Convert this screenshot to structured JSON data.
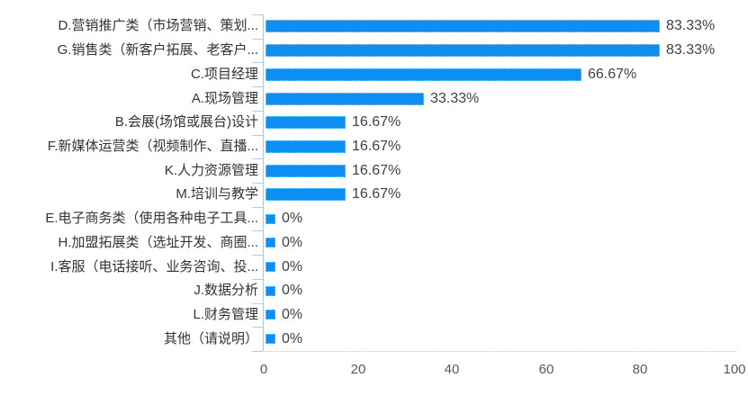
{
  "chart_data": {
    "type": "bar",
    "orientation": "horizontal",
    "title": "",
    "xlabel": "",
    "ylabel": "",
    "legend": "none",
    "grid": false,
    "xlim": [
      0,
      100
    ],
    "x_ticks": [
      "0",
      "20",
      "40",
      "60",
      "80",
      "100"
    ],
    "x_tick_values": [
      0,
      20,
      40,
      60,
      80,
      100
    ],
    "categories": [
      "D.营销推广类（市场营销、策划...",
      "G.销售类（新客户拓展、老客户...",
      "C.项目经理",
      "A.现场管理",
      "B.会展(场馆或展台)设计",
      "F.新媒体运营类（视频制作、直播...",
      "K.人力资源管理",
      "M.培训与教学",
      "E.电子商务类（使用各种电子工具...",
      "H.加盟拓展类（选址开发、商圈...",
      "I.客服（电话接听、业务咨询、投...",
      "J.数据分析",
      "L.财务管理",
      "其他（请说明）"
    ],
    "values": [
      83.33,
      83.33,
      66.67,
      33.33,
      16.67,
      16.67,
      16.67,
      16.67,
      0,
      0,
      0,
      0,
      0,
      0
    ],
    "value_labels": [
      "83.33%",
      "83.33%",
      "66.67%",
      "33.33%",
      "16.67%",
      "16.67%",
      "16.67%",
      "16.67%",
      "0%",
      "0%",
      "0%",
      "0%",
      "0%",
      "0%"
    ],
    "colors": {
      "bar_fill": "#0C8EF2",
      "bar_border": "#A8D4F8",
      "axis_line": "#A9C9E8",
      "category_text": "#333333",
      "value_text": "#404040",
      "tick_text": "#595959",
      "background": "#FFFFFF"
    }
  }
}
